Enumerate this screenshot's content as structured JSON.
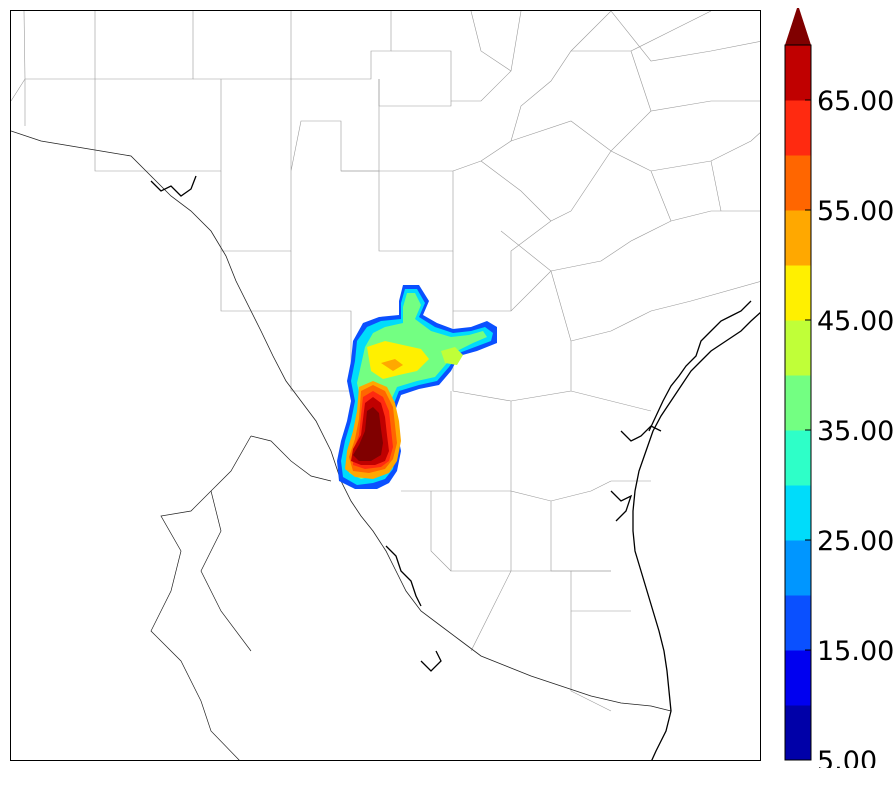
{
  "colorbar": {
    "tick_labels": [
      "5.00",
      "15.00",
      "25.00",
      "35.00",
      "45.00",
      "55.00",
      "65.00"
    ],
    "tick_values": [
      5,
      15,
      25,
      35,
      45,
      55,
      65
    ],
    "levels": [
      5,
      10,
      15,
      20,
      25,
      30,
      35,
      40,
      45,
      50,
      55,
      60,
      65,
      70
    ],
    "colors": [
      "#0000a8",
      "#0000f0",
      "#0a50ff",
      "#0096ff",
      "#00dcfa",
      "#2effc8",
      "#73ff82",
      "#c0ff38",
      "#fff000",
      "#ffa800",
      "#ff6600",
      "#ff2a10",
      "#c00000"
    ],
    "extend_color": "#800000",
    "extend": "max"
  },
  "map": {
    "border_color": "#000000",
    "county_line_color": "#999999",
    "coast_color": "#000000"
  }
}
